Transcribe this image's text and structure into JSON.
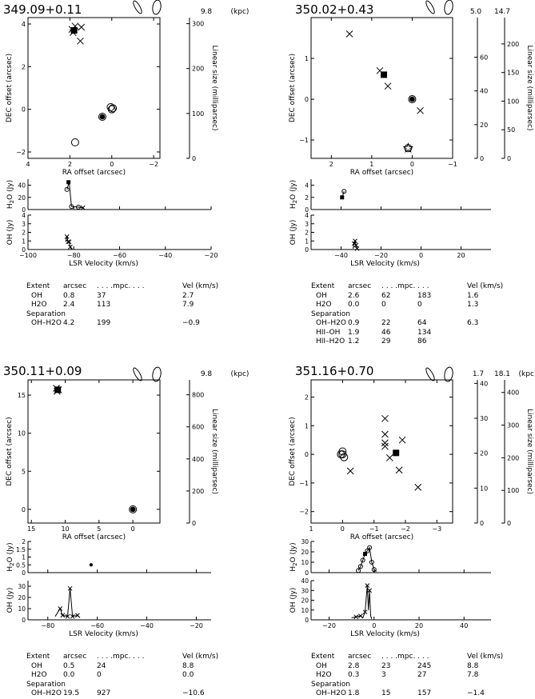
{
  "panels": [
    {
      "name": "349.09+0.11",
      "distance_kpc": [
        "9.8"
      ],
      "kpc_label": "(kpc)",
      "map": {
        "xlabel": "RA offset (arcsec)",
        "ylabel": "DEC offset (arcsec)",
        "scale_label": "Linear size (milliparsec)",
        "xlim": [
          4,
          -2.3
        ],
        "ylim": [
          -2.3,
          4.3
        ],
        "xticks": [
          4,
          2,
          0,
          -2
        ],
        "yticks": [
          -2,
          0,
          2,
          4
        ],
        "scale_axes": [
          {
            "ticks": [
              0,
              100,
              200,
              300
            ],
            "mpc_per_arcsec": 47.5
          }
        ],
        "points": [
          {
            "sym": "x",
            "x": 1.9,
            "y": 3.75
          },
          {
            "sym": "x",
            "x": 1.75,
            "y": 3.9
          },
          {
            "sym": "x",
            "x": 1.45,
            "y": 3.85
          },
          {
            "sym": "x",
            "x": 1.5,
            "y": 3.2
          },
          {
            "sym": "x",
            "x": 1.85,
            "y": 3.6
          },
          {
            "sym": "square",
            "x": 1.8,
            "y": 3.7
          },
          {
            "sym": "circle",
            "x": 0.0,
            "y": 0.0
          },
          {
            "sym": "circle",
            "x": 0.05,
            "y": 0.1
          },
          {
            "sym": "circle",
            "x": -0.05,
            "y": 0.05
          },
          {
            "sym": "dot",
            "x": 0.45,
            "y": -0.35
          },
          {
            "sym": "circle",
            "x": 0.45,
            "y": -0.35
          },
          {
            "sym": "circle",
            "x": 1.75,
            "y": -1.55
          }
        ]
      },
      "h2o": {
        "ylabel": "H2O (Jy)",
        "yticks": [
          0,
          20,
          40
        ],
        "ylim": [
          0,
          50
        ],
        "line": [
          [
            -83,
            33
          ],
          [
            -82,
            45
          ],
          [
            -81,
            5
          ],
          [
            -78,
            4
          ],
          [
            -76,
            3
          ]
        ],
        "markers": [
          {
            "sym": "square",
            "x": -82.3,
            "y": 45
          },
          {
            "sym": "circle",
            "x": -83,
            "y": 33
          },
          {
            "sym": "circle",
            "x": -81,
            "y": 5
          },
          {
            "sym": "circle",
            "x": -78,
            "y": 4
          },
          {
            "sym": "x",
            "x": -76,
            "y": 3
          }
        ]
      },
      "oh": {
        "ylabel": "OH (Jy)",
        "yticks": [
          0,
          1,
          2,
          3,
          4
        ],
        "ylim": [
          0,
          4
        ],
        "line": [
          [
            -83.5,
            0.9
          ],
          [
            -83,
            1.5
          ],
          [
            -82.5,
            0.9
          ],
          [
            -82,
            0.9
          ],
          [
            -81.5,
            0.3
          ],
          [
            -81,
            0
          ]
        ],
        "markers": [
          {
            "sym": "x",
            "x": -83,
            "y": 1.5
          },
          {
            "sym": "x",
            "x": -82.5,
            "y": 0.9
          },
          {
            "sym": "x",
            "x": -82,
            "y": 0.9
          },
          {
            "sym": "x",
            "x": -81.5,
            "y": 0.3
          }
        ]
      },
      "velocity": {
        "xlabel": "LSR Velocity (km/s)",
        "xlim": [
          -100,
          -20
        ],
        "xticks": [
          -100,
          -80,
          -60,
          -40,
          -20
        ]
      },
      "table": {
        "header": [
          "Extent",
          "arcsec",
          ". . . .mpc. . . .",
          "Vel (km/s)"
        ],
        "rows": [
          [
            "OH",
            "0.8",
            "37",
            "",
            "2.7"
          ],
          [
            "H2O",
            "2.4",
            "113",
            "",
            "7.9"
          ]
        ],
        "separation_label": "Separation",
        "sep_rows": [
          [
            "OH–H2O",
            "4.2",
            "199",
            "",
            "−0.9"
          ]
        ]
      }
    },
    {
      "name": "350.02+0.43",
      "distance_kpc": [
        "5.0",
        "14.7"
      ],
      "kpc_label": "(kpc)",
      "map": {
        "xlabel": "RA offset (arcsec)",
        "ylabel": "DEC offset (arcsec)",
        "scale_label": "Linear size (milliparsec)",
        "xlim": [
          2.5,
          -1.0
        ],
        "ylim": [
          -1.45,
          2.0
        ],
        "xticks": [
          2,
          1,
          0,
          -1
        ],
        "yticks": [
          -1,
          0,
          1
        ],
        "scale_axes": [
          {
            "ticks": [
              0,
              20,
              40,
              60
            ],
            "mpc_per_arcsec": 24.2
          },
          {
            "ticks": [
              0,
              50,
              100,
              150,
              200
            ],
            "mpc_per_arcsec": 71.3
          }
        ],
        "points": [
          {
            "sym": "x",
            "x": 1.55,
            "y": 1.6
          },
          {
            "sym": "x",
            "x": 0.8,
            "y": 0.7
          },
          {
            "sym": "square",
            "x": 0.7,
            "y": 0.6
          },
          {
            "sym": "x",
            "x": 0.6,
            "y": 0.32
          },
          {
            "sym": "x",
            "x": -0.2,
            "y": -0.28
          },
          {
            "sym": "dot",
            "x": 0.0,
            "y": 0.0
          },
          {
            "sym": "circle",
            "x": 0.0,
            "y": 0.0
          },
          {
            "sym": "star",
            "x": 0.1,
            "y": -1.2
          },
          {
            "sym": "circle",
            "x": 0.1,
            "y": -1.2
          }
        ]
      },
      "h2o": {
        "ylabel": "H2O (Jy)",
        "yticks": [
          0,
          2,
          4
        ],
        "ylim": [
          0,
          5
        ],
        "line": [
          [
            -39.5,
            2.0
          ],
          [
            -38.5,
            3.0
          ]
        ],
        "markers": [
          {
            "sym": "square",
            "x": -39.5,
            "y": 2.0
          },
          {
            "sym": "circle",
            "x": -38.5,
            "y": 3.0
          }
        ]
      },
      "oh": {
        "ylabel": "OH (Jy)",
        "yticks": [
          0,
          1,
          2,
          3,
          4
        ],
        "ylim": [
          0,
          4
        ],
        "line": [
          [
            -34,
            0.1
          ],
          [
            -33.5,
            0.7
          ],
          [
            -33,
            1.0
          ],
          [
            -32.5,
            0.5
          ],
          [
            -32,
            0.1
          ]
        ],
        "markers": [
          {
            "sym": "x",
            "x": -33.5,
            "y": 0.7
          },
          {
            "sym": "x",
            "x": -33,
            "y": 1.0
          },
          {
            "sym": "x",
            "x": -32.5,
            "y": 0.5
          },
          {
            "sym": "x",
            "x": -32,
            "y": 0.1
          }
        ]
      },
      "velocity": {
        "xlabel": "LSR Velocity (km/s)",
        "xlim": [
          -55,
          35
        ],
        "xticks": [
          -40,
          -20,
          0,
          20
        ]
      },
      "table": {
        "header": [
          "Extent",
          "arcsec",
          ". . . .mpc. . . .",
          "Vel (km/s)"
        ],
        "rows": [
          [
            "OH",
            "2.6",
            "62",
            "183",
            "1.6"
          ],
          [
            "H2O",
            "0.0",
            "0",
            "0",
            "1.3"
          ]
        ],
        "separation_label": "Separation",
        "sep_rows": [
          [
            "OH–H2O",
            "0.9",
            "22",
            "64",
            "6.3"
          ],
          [
            "HII–OH",
            "1.9",
            "46",
            "134",
            ""
          ],
          [
            "HII–H2O",
            "1.2",
            "29",
            "86",
            ""
          ]
        ]
      }
    },
    {
      "name": "350.11+0.09",
      "distance_kpc": [
        "9.8"
      ],
      "kpc_label": "(kpc)",
      "map": {
        "xlabel": "RA offset (arcsec)",
        "ylabel": "DEC offset (arcsec)",
        "scale_label": "Linear size (milliparsec)",
        "xlim": [
          15.5,
          -4.0
        ],
        "ylim": [
          -1.8,
          17.0
        ],
        "xticks": [
          15,
          10,
          5,
          0
        ],
        "yticks": [
          0,
          5,
          10,
          15
        ],
        "scale_axes": [
          {
            "ticks": [
              0,
              200,
              400,
              600,
              800
            ],
            "mpc_per_arcsec": 47.5
          }
        ],
        "points": [
          {
            "sym": "x",
            "x": 11.3,
            "y": 15.9
          },
          {
            "sym": "x",
            "x": 11.0,
            "y": 15.7
          },
          {
            "sym": "x",
            "x": 11.2,
            "y": 15.5
          },
          {
            "sym": "square",
            "x": 11.1,
            "y": 15.7
          },
          {
            "sym": "dot",
            "x": 0.0,
            "y": 0.0
          },
          {
            "sym": "circle",
            "x": 0.0,
            "y": 0.0
          }
        ]
      },
      "h2o": {
        "ylabel": "H2O (Jy)",
        "yticks": [
          0,
          0.5,
          1,
          1.5,
          2
        ],
        "ylim": [
          0,
          2
        ],
        "line": [],
        "markers": [
          {
            "sym": "dot",
            "x": -62.5,
            "y": 0.5
          }
        ]
      },
      "oh": {
        "ylabel": "OH (Jy)",
        "yticks": [
          0,
          10,
          20,
          30
        ],
        "ylim": [
          0,
          35
        ],
        "line": [
          [
            -77,
            3
          ],
          [
            -75,
            10
          ],
          [
            -74,
            4
          ],
          [
            -72,
            3
          ],
          [
            -71,
            28
          ],
          [
            -70,
            3
          ],
          [
            -68,
            4
          ],
          [
            -67,
            2
          ]
        ],
        "markers": [
          {
            "sym": "x",
            "x": -75,
            "y": 10
          },
          {
            "sym": "x",
            "x": -74,
            "y": 4
          },
          {
            "sym": "x",
            "x": -72,
            "y": 3
          },
          {
            "sym": "x",
            "x": -71,
            "y": 28
          },
          {
            "sym": "x",
            "x": -70,
            "y": 3
          },
          {
            "sym": "x",
            "x": -68,
            "y": 4
          }
        ]
      },
      "velocity": {
        "xlabel": "LSR Velocity (km/s)",
        "xlim": [
          -88,
          -14
        ],
        "xticks": [
          -80,
          -60,
          -40,
          -20
        ]
      },
      "table": {
        "header": [
          "Extent",
          "arcsec",
          ". . . .mpc. . . .",
          "Vel (km/s)"
        ],
        "rows": [
          [
            "OH",
            "0.5",
            "24",
            "",
            "8.8"
          ],
          [
            "H2O",
            "0.0",
            "0",
            "",
            "0.0"
          ]
        ],
        "separation_label": "Separation",
        "sep_rows": [
          [
            "OH–H2O",
            "19.5",
            "927",
            "",
            "−10.6"
          ]
        ]
      }
    },
    {
      "name": "351.16+0.70",
      "distance_kpc": [
        "1.7",
        "18.1"
      ],
      "kpc_label": "(kpc)",
      "map": {
        "xlabel": "RA offset (arcsec)",
        "ylabel": "DEC offset (arcsec)",
        "scale_label": "Linear size (milliparsec)",
        "xlim": [
          1.0,
          -3.5
        ],
        "ylim": [
          -2.4,
          2.6
        ],
        "xticks": [
          1,
          0,
          -1,
          -2,
          -3
        ],
        "yticks": [
          -2,
          -1,
          0,
          1,
          2
        ],
        "scale_axes": [
          {
            "ticks": [
              0,
              10,
              20,
              30,
              40
            ],
            "mpc_per_arcsec": 8.2
          },
          {
            "ticks": [
              0,
              100,
              200,
              300,
              400
            ],
            "mpc_per_arcsec": 87.7
          }
        ],
        "points": [
          {
            "sym": "x",
            "x": -1.35,
            "y": 1.25
          },
          {
            "sym": "x",
            "x": -1.35,
            "y": 0.7
          },
          {
            "sym": "x",
            "x": -1.35,
            "y": 0.4
          },
          {
            "sym": "x",
            "x": -1.35,
            "y": 0.28
          },
          {
            "sym": "x",
            "x": -1.9,
            "y": 0.5
          },
          {
            "sym": "x",
            "x": -1.5,
            "y": -0.12
          },
          {
            "sym": "square",
            "x": -1.7,
            "y": 0.05
          },
          {
            "sym": "x",
            "x": -1.8,
            "y": -0.55
          },
          {
            "sym": "x",
            "x": -2.4,
            "y": -1.15
          },
          {
            "sym": "x",
            "x": -0.25,
            "y": -0.58
          },
          {
            "sym": "circle",
            "x": 0.0,
            "y": 0.0
          },
          {
            "sym": "circle",
            "x": 0.0,
            "y": 0.1
          },
          {
            "sym": "circle",
            "x": -0.05,
            "y": -0.1
          },
          {
            "sym": "circle",
            "x": 0.05,
            "y": 0.0
          }
        ]
      },
      "h2o": {
        "ylabel": "H2O (Jy)",
        "yticks": [
          0,
          10,
          20,
          30
        ],
        "ylim": [
          0,
          30
        ],
        "line": [
          [
            -7,
            2
          ],
          [
            -6,
            6
          ],
          [
            -5,
            12
          ],
          [
            -4,
            18
          ],
          [
            -3,
            21
          ],
          [
            -2,
            24
          ],
          [
            -1,
            10
          ],
          [
            0,
            3
          ],
          [
            1,
            1
          ]
        ],
        "markers": [
          {
            "sym": "circle",
            "x": -7,
            "y": 2
          },
          {
            "sym": "circle",
            "x": -6,
            "y": 6
          },
          {
            "sym": "circle",
            "x": -5,
            "y": 12
          },
          {
            "sym": "square",
            "x": -4,
            "y": 18
          },
          {
            "sym": "circle",
            "x": -3,
            "y": 21
          },
          {
            "sym": "circle",
            "x": -2,
            "y": 24
          },
          {
            "sym": "circle",
            "x": -1,
            "y": 10
          },
          {
            "sym": "circle",
            "x": 0,
            "y": 3
          }
        ]
      },
      "oh": {
        "ylabel": "OH (Jy)",
        "yticks": [
          0,
          10,
          20,
          30,
          40
        ],
        "ylim": [
          0,
          40
        ],
        "line": [
          [
            -10,
            2
          ],
          [
            -8,
            3
          ],
          [
            -6,
            4
          ],
          [
            -5,
            2
          ],
          [
            -4,
            8
          ],
          [
            -3,
            35
          ],
          [
            -2.5,
            10
          ],
          [
            -2,
            30
          ],
          [
            -1.5,
            4
          ],
          [
            -1,
            1
          ]
        ],
        "markers": [
          {
            "sym": "x",
            "x": -8,
            "y": 3
          },
          {
            "sym": "x",
            "x": -6,
            "y": 4
          },
          {
            "sym": "x",
            "x": -4,
            "y": 8
          },
          {
            "sym": "x",
            "x": -3,
            "y": 35
          },
          {
            "sym": "x",
            "x": -2,
            "y": 30
          }
        ]
      },
      "velocity": {
        "xlabel": "LSR Velocity (km/s)",
        "xlim": [
          -28,
          52
        ],
        "xticks": [
          -20,
          0,
          20,
          40
        ]
      },
      "table": {
        "header": [
          "Extent",
          "arcsec",
          ". . . .mpc. . . .",
          "Vel (km/s)"
        ],
        "rows": [
          [
            "OH",
            "2.8",
            "23",
            "245",
            "8.8"
          ],
          [
            "H2O",
            "0.3",
            "3",
            "27",
            "7.8"
          ]
        ],
        "separation_label": "Separation",
        "sep_rows": [
          [
            "OH–H2O",
            "1.8",
            "15",
            "157",
            "−1.4"
          ]
        ]
      }
    }
  ]
}
